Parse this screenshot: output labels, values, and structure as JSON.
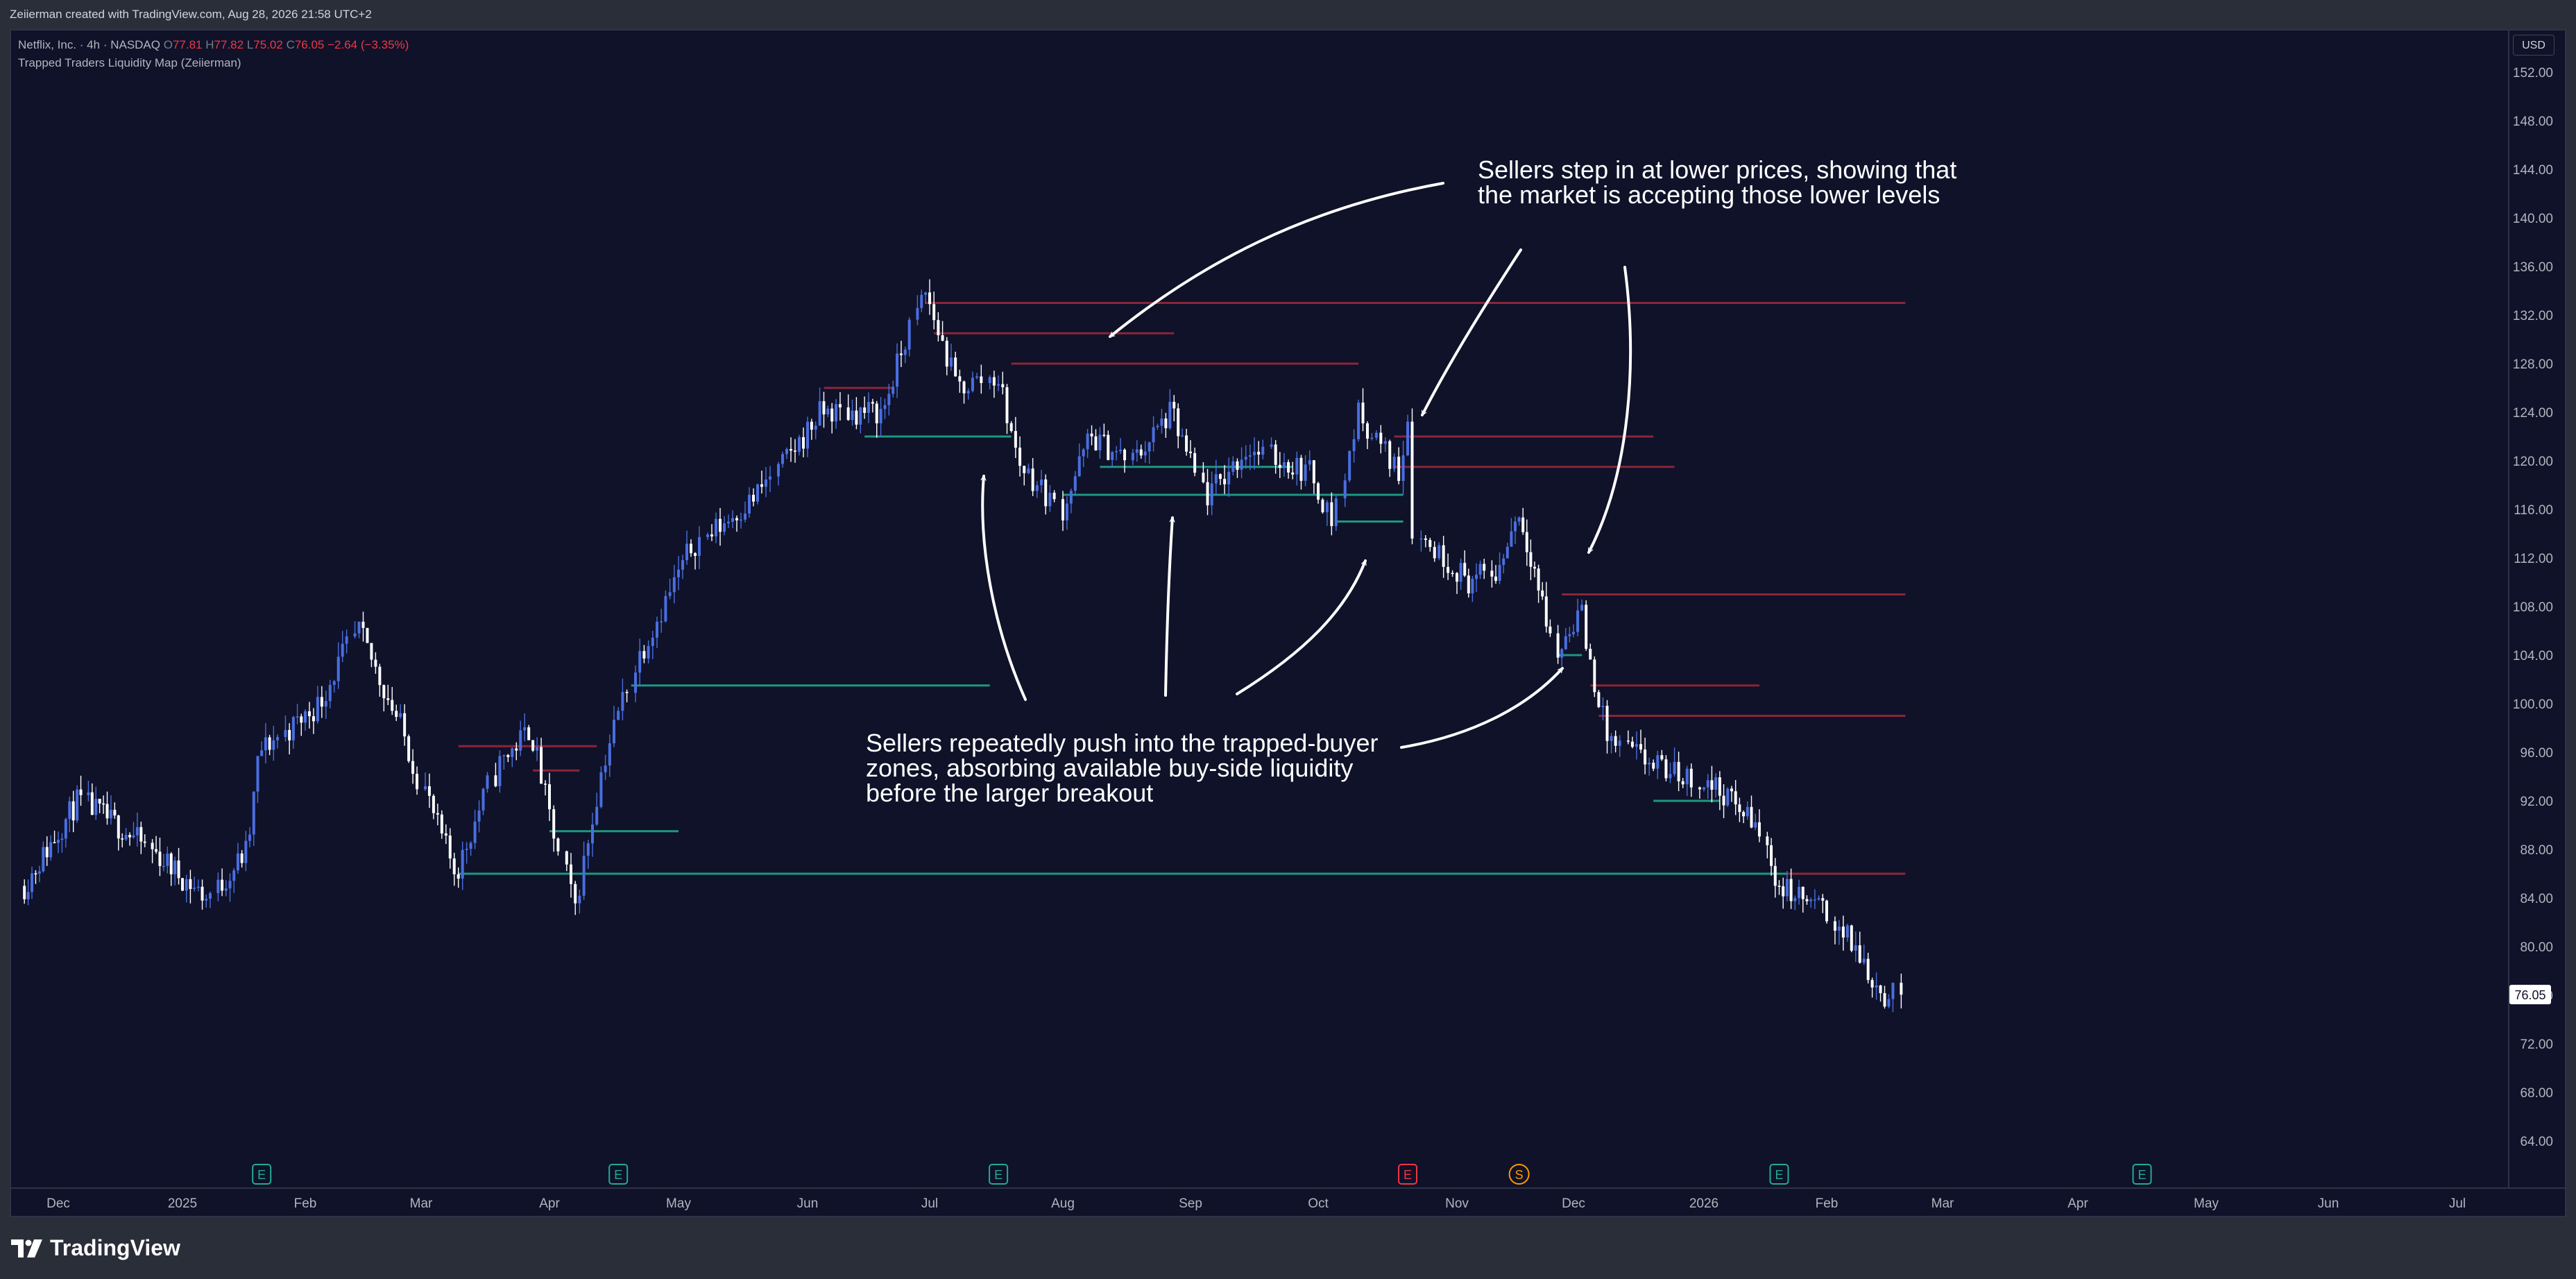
{
  "header": {
    "text": "Zeiierman created with TradingView.com, Aug 28, 2026 21:58 UTC+2"
  },
  "legend": {
    "symbol": "Netflix, Inc. · 4h · NASDAQ",
    "o_label": "O",
    "o": "77.81",
    "h_label": "H",
    "h": "77.82",
    "l_label": "L",
    "l": "75.02",
    "c_label": "C",
    "c": "76.05",
    "change": "−2.64 (−3.35%)",
    "indicator": "Trapped Traders Liquidity Map (Zeiierman)"
  },
  "currency": "USD",
  "last_price_label": "76.05",
  "footer": {
    "brand": "TradingView"
  },
  "colors": {
    "background": "#0f1229",
    "candle_up": "#4a6ee0",
    "candle_down": "#ffffff",
    "sell_zone": "#f23645",
    "buy_zone": "#22d1a6",
    "earnings_badge": "#22ab94",
    "earnings_badge_negative": "#f23645",
    "split_badge": "#ff9800"
  },
  "chart_data": {
    "type": "candlestick",
    "y_axis": {
      "ticks": [
        "152.00",
        "148.00",
        "144.00",
        "140.00",
        "136.00",
        "132.00",
        "128.00",
        "124.00",
        "120.00",
        "116.00",
        "112.00",
        "108.00",
        "104.00",
        "100.00",
        "96.00",
        "92.00",
        "88.00",
        "84.00",
        "80.00",
        "76.00",
        "72.00",
        "68.00",
        "64.00"
      ],
      "range": [
        60.5,
        154
      ]
    },
    "x_axis": {
      "ticks": [
        "Dec",
        "2025",
        "Feb",
        "Mar",
        "Apr",
        "May",
        "Jun",
        "Jul",
        "Aug",
        "Sep",
        "Oct",
        "Nov",
        "Dec",
        "2026",
        "Feb",
        "Mar",
        "Apr",
        "May",
        "Jun",
        "Jul"
      ],
      "tick_dates": [
        "2024-11-29",
        "2025-01-01",
        "2025-02-01",
        "2025-03-01",
        "2025-04-01",
        "2025-05-01",
        "2025-06-01",
        "2025-07-01",
        "2025-08-01",
        "2025-09-01",
        "2025-10-01",
        "2025-11-01",
        "2025-12-01",
        "2026-01-01",
        "2026-02-01",
        "2026-03-01",
        "2026-04-01",
        "2026-05-01",
        "2026-06-01",
        "2026-07-01"
      ]
    },
    "price_path": [
      [
        "2024-11-20",
        85
      ],
      [
        "2024-12-05",
        92
      ],
      [
        "2024-12-20",
        89
      ],
      [
        "2025-01-08",
        84
      ],
      [
        "2025-01-18",
        88
      ],
      [
        "2025-01-21",
        96
      ],
      [
        "2025-02-05",
        100
      ],
      [
        "2025-02-14",
        106
      ],
      [
        "2025-02-25",
        98
      ],
      [
        "2025-03-05",
        90
      ],
      [
        "2025-03-10",
        86
      ],
      [
        "2025-03-20",
        95
      ],
      [
        "2025-03-28",
        98
      ],
      [
        "2025-04-07",
        83
      ],
      [
        "2025-04-14",
        95
      ],
      [
        "2025-04-22",
        104
      ],
      [
        "2025-05-05",
        113
      ],
      [
        "2025-05-20",
        117
      ],
      [
        "2025-06-05",
        124
      ],
      [
        "2025-06-20",
        124
      ],
      [
        "2025-06-30",
        134
      ],
      [
        "2025-07-08",
        126
      ],
      [
        "2025-07-17",
        127
      ],
      [
        "2025-07-22",
        120
      ],
      [
        "2025-08-01",
        116
      ],
      [
        "2025-08-08",
        122
      ],
      [
        "2025-08-18",
        120
      ],
      [
        "2025-08-28",
        124
      ],
      [
        "2025-09-05",
        117
      ],
      [
        "2025-09-15",
        121
      ],
      [
        "2025-09-30",
        119
      ],
      [
        "2025-10-05",
        115
      ],
      [
        "2025-10-10",
        124
      ],
      [
        "2025-10-20",
        119
      ],
      [
        "2025-10-22",
        124
      ],
      [
        "2025-10-23",
        114
      ],
      [
        "2025-11-05",
        110
      ],
      [
        "2025-11-12",
        111
      ],
      [
        "2025-11-17",
        116
      ],
      [
        "2025-11-21",
        112
      ],
      [
        "2025-11-27",
        104
      ],
      [
        "2025-12-03",
        108
      ],
      [
        "2025-12-05",
        104
      ],
      [
        "2025-12-10",
        97
      ],
      [
        "2025-12-20",
        95
      ],
      [
        "2026-01-05",
        93
      ],
      [
        "2026-01-15",
        90
      ],
      [
        "2026-01-20",
        85
      ],
      [
        "2026-02-01",
        83
      ],
      [
        "2026-02-10",
        79
      ],
      [
        "2026-02-15",
        76
      ],
      [
        "2026-02-19",
        76.05
      ]
    ],
    "last_bar": {
      "open": 77.81,
      "high": 77.82,
      "low": 75.02,
      "close": 76.05,
      "change": -2.64,
      "change_pct": -3.35
    },
    "trapped_seller_zones": [
      {
        "price": 133.0,
        "from": "2025-06-30",
        "to": "2026-02-20"
      },
      {
        "price": 130.5,
        "from": "2025-07-02",
        "to": "2025-08-28"
      },
      {
        "price": 128.0,
        "from": "2025-07-20",
        "to": "2025-10-10"
      },
      {
        "price": 126.0,
        "from": "2025-06-05",
        "to": "2025-06-22"
      },
      {
        "price": 122.0,
        "from": "2025-10-18",
        "to": "2025-12-20"
      },
      {
        "price": 119.5,
        "from": "2025-10-18",
        "to": "2025-12-25"
      },
      {
        "price": 109.0,
        "from": "2025-11-28",
        "to": "2026-02-20"
      },
      {
        "price": 101.5,
        "from": "2025-12-05",
        "to": "2026-01-15"
      },
      {
        "price": 99.0,
        "from": "2025-12-07",
        "to": "2026-02-20"
      },
      {
        "price": 96.5,
        "from": "2025-03-10",
        "to": "2025-04-01"
      },
      {
        "price": 96.5,
        "from": "2025-04-01",
        "to": "2025-04-12"
      },
      {
        "price": 94.5,
        "from": "2025-03-28",
        "to": "2025-04-08"
      },
      {
        "price": 86.0,
        "from": "2026-01-22",
        "to": "2026-02-20"
      }
    ],
    "trapped_buyer_zones": [
      {
        "price": 122.0,
        "from": "2025-06-15",
        "to": "2025-07-20"
      },
      {
        "price": 119.5,
        "from": "2025-08-10",
        "to": "2025-09-25"
      },
      {
        "price": 117.2,
        "from": "2025-08-01",
        "to": "2025-10-20"
      },
      {
        "price": 115.0,
        "from": "2025-10-05",
        "to": "2025-10-20"
      },
      {
        "price": 104.0,
        "from": "2025-11-27",
        "to": "2025-12-03"
      },
      {
        "price": 101.5,
        "from": "2025-04-20",
        "to": "2025-07-15"
      },
      {
        "price": 92.0,
        "from": "2025-12-20",
        "to": "2026-01-05"
      },
      {
        "price": 89.5,
        "from": "2025-04-01",
        "to": "2025-05-01"
      },
      {
        "price": 86.0,
        "from": "2025-03-10",
        "to": "2026-01-22"
      }
    ],
    "event_badges": [
      {
        "date": "2025-01-21",
        "label": "E",
        "kind": "earnings"
      },
      {
        "date": "2025-04-17",
        "label": "E",
        "kind": "earnings"
      },
      {
        "date": "2025-07-17",
        "label": "E",
        "kind": "earnings"
      },
      {
        "date": "2025-10-21",
        "label": "E",
        "kind": "earnings-negative"
      },
      {
        "date": "2025-11-17",
        "label": "S",
        "kind": "split"
      },
      {
        "date": "2026-01-20",
        "label": "E",
        "kind": "earnings"
      },
      {
        "date": "2026-04-16",
        "label": "E",
        "kind": "earnings"
      }
    ],
    "annotations": [
      {
        "lines": [
          "Sellers step in at lower prices, showing that",
          "the market is accepting those lower levels"
        ]
      },
      {
        "lines": [
          "Sellers repeatedly push into the trapped-buyer",
          "zones, absorbing available buy-side liquidity",
          "before the larger breakout"
        ]
      }
    ]
  }
}
